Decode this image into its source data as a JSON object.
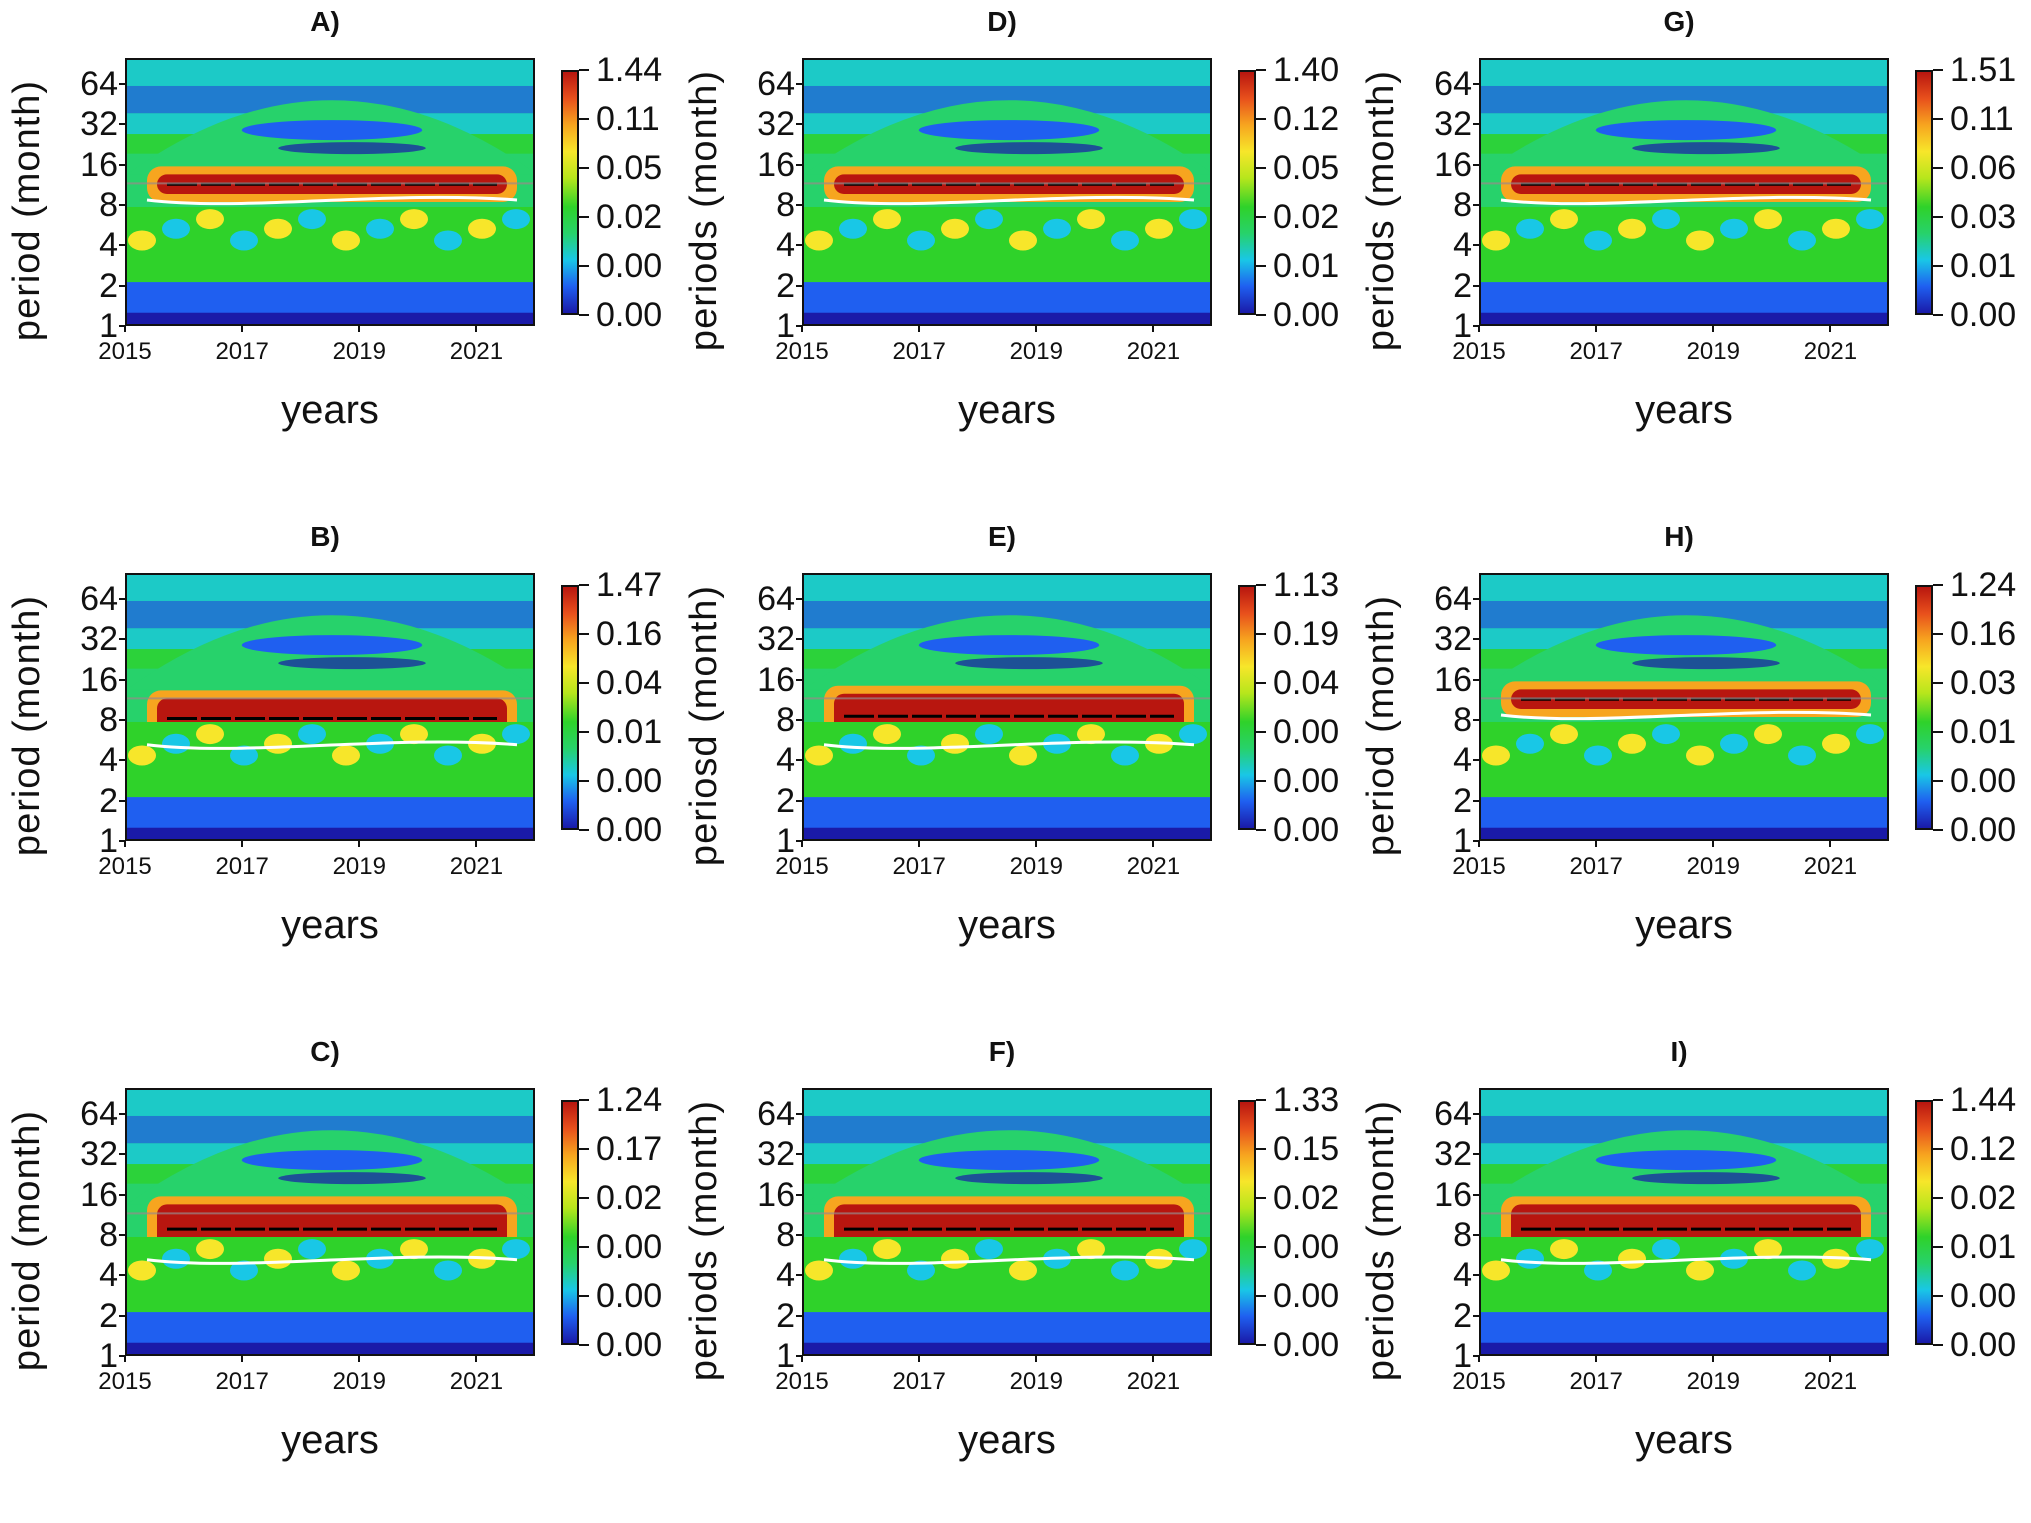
{
  "figure": {
    "description_type": "wavelet power spectra grid"
  },
  "colors": {
    "scale": [
      "#1a1aa8",
      "#1f5ff0",
      "#19c7e6",
      "#27d26b",
      "#2fd22a",
      "#b7e61c",
      "#f7e62a",
      "#f7a51f",
      "#e8501c",
      "#b8160f"
    ]
  },
  "chart_data": [
    {
      "id": "A",
      "title": "A)",
      "type": "heatmap",
      "ylabel": "period (month)",
      "xlabel": "years",
      "yticks": [
        "64",
        "32",
        "16",
        "8",
        "4",
        "2",
        "1"
      ],
      "xticks": [
        "2015",
        "2017",
        "2019",
        "2021"
      ],
      "xlim": [
        2015,
        2022
      ],
      "ylim": [
        1,
        100
      ],
      "colorbar": [
        "1.44",
        "0.11",
        "0.05",
        "0.02",
        "0.00",
        "0.00"
      ],
      "dominant_period_band": [
        10,
        14
      ]
    },
    {
      "id": "D",
      "title": "D)",
      "type": "heatmap",
      "ylabel": "periods (month)",
      "xlabel": "years",
      "yticks": [
        "64",
        "32",
        "16",
        "8",
        "4",
        "2",
        "1"
      ],
      "xticks": [
        "2015",
        "2017",
        "2019",
        "2021"
      ],
      "xlim": [
        2015,
        2022
      ],
      "ylim": [
        1,
        100
      ],
      "colorbar": [
        "1.40",
        "0.12",
        "0.05",
        "0.02",
        "0.01",
        "0.00"
      ],
      "dominant_period_band": [
        10,
        14
      ]
    },
    {
      "id": "G",
      "title": "G)",
      "type": "heatmap",
      "ylabel": "periods (month)",
      "xlabel": "years",
      "yticks": [
        "64",
        "32",
        "16",
        "8",
        "4",
        "2",
        "1"
      ],
      "xticks": [
        "2015",
        "2017",
        "2019",
        "2021"
      ],
      "xlim": [
        2015,
        2022
      ],
      "ylim": [
        1,
        100
      ],
      "colorbar": [
        "1.51",
        "0.11",
        "0.06",
        "0.03",
        "0.01",
        "0.00"
      ],
      "dominant_period_band": [
        10,
        14
      ]
    },
    {
      "id": "B",
      "title": "B)",
      "type": "heatmap",
      "ylabel": "period (month)",
      "xlabel": "years",
      "yticks": [
        "64",
        "32",
        "16",
        "8",
        "4",
        "2",
        "1"
      ],
      "xticks": [
        "2015",
        "2017",
        "2019",
        "2021"
      ],
      "xlim": [
        2015,
        2022
      ],
      "ylim": [
        1,
        100
      ],
      "colorbar": [
        "1.47",
        "0.16",
        "0.04",
        "0.01",
        "0.00",
        "0.00"
      ],
      "dominant_period_band": [
        6,
        12
      ]
    },
    {
      "id": "E",
      "title": "E)",
      "type": "heatmap",
      "ylabel": "periosd (month)",
      "xlabel": "years",
      "yticks": [
        "64",
        "32",
        "16",
        "8",
        "4",
        "2",
        "1"
      ],
      "xticks": [
        "2015",
        "2017",
        "2019",
        "2021"
      ],
      "xlim": [
        2015,
        2022
      ],
      "ylim": [
        1,
        100
      ],
      "colorbar": [
        "1.13",
        "0.19",
        "0.04",
        "0.00",
        "0.00",
        "0.00"
      ],
      "dominant_period_band": [
        6,
        13
      ]
    },
    {
      "id": "H",
      "title": "H)",
      "type": "heatmap",
      "ylabel": "period (month)",
      "xlabel": "years",
      "yticks": [
        "64",
        "32",
        "16",
        "8",
        "4",
        "2",
        "1"
      ],
      "xticks": [
        "2015",
        "2017",
        "2019",
        "2021"
      ],
      "xlim": [
        2015,
        2022
      ],
      "ylim": [
        1,
        100
      ],
      "colorbar": [
        "1.24",
        "0.16",
        "0.03",
        "0.01",
        "0.00",
        "0.00"
      ],
      "dominant_period_band": [
        10,
        14
      ]
    },
    {
      "id": "C",
      "title": "C)",
      "type": "heatmap",
      "ylabel": "period (month)",
      "xlabel": "years",
      "yticks": [
        "64",
        "32",
        "16",
        "8",
        "4",
        "2",
        "1"
      ],
      "xticks": [
        "2015",
        "2017",
        "2019",
        "2021"
      ],
      "xlim": [
        2015,
        2022
      ],
      "ylim": [
        1,
        100
      ],
      "colorbar": [
        "1.24",
        "0.17",
        "0.02",
        "0.00",
        "0.00",
        "0.00"
      ],
      "dominant_period_band": [
        6,
        14
      ]
    },
    {
      "id": "F",
      "title": "F)",
      "type": "heatmap",
      "ylabel": "periods (month)",
      "xlabel": "years",
      "yticks": [
        "64",
        "32",
        "16",
        "8",
        "4",
        "2",
        "1"
      ],
      "xticks": [
        "2015",
        "2017",
        "2019",
        "2021"
      ],
      "xlim": [
        2015,
        2022
      ],
      "ylim": [
        1,
        100
      ],
      "colorbar": [
        "1.33",
        "0.15",
        "0.02",
        "0.00",
        "0.00",
        "0.00"
      ],
      "dominant_period_band": [
        6,
        14
      ]
    },
    {
      "id": "I",
      "title": "I)",
      "type": "heatmap",
      "ylabel": "periods (month)",
      "xlabel": "years",
      "yticks": [
        "64",
        "32",
        "16",
        "8",
        "4",
        "2",
        "1"
      ],
      "xticks": [
        "2015",
        "2017",
        "2019",
        "2021"
      ],
      "xlim": [
        2015,
        2022
      ],
      "ylim": [
        1,
        100
      ],
      "colorbar": [
        "1.44",
        "0.12",
        "0.02",
        "0.01",
        "0.00",
        "0.00"
      ],
      "dominant_period_band": [
        6,
        14
      ]
    }
  ]
}
